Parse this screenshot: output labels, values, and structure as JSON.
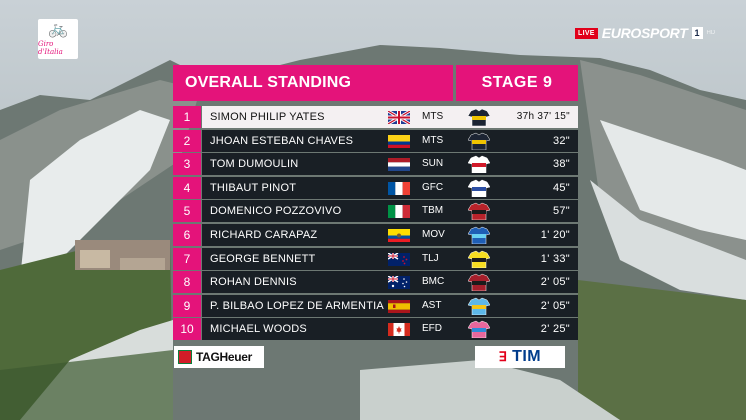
{
  "logo": {
    "text": "Giro d'Italia"
  },
  "broadcast": {
    "live": "LIVE",
    "channel_name": "EUROSPORT",
    "channel_number": "1",
    "hd": "HD"
  },
  "table": {
    "title": "OVERALL STANDING",
    "stage": "STAGE 9",
    "accent_color": "#e4137a",
    "rows": [
      {
        "pos": "1",
        "name": "SIMON PHILIP YATES",
        "flag": "gb-flag",
        "team": "MTS",
        "jersey": "leader-jersey-icon",
        "time": "37h 37' 15\""
      },
      {
        "pos": "2",
        "name": "JHOAN ESTEBAN CHAVES",
        "flag": "co-flag",
        "team": "MTS",
        "jersey": "mts-jersey-icon",
        "time": "32\""
      },
      {
        "pos": "3",
        "name": "TOM DUMOULIN",
        "flag": "nl-flag",
        "team": "SUN",
        "jersey": "sun-jersey-icon",
        "time": "38\""
      },
      {
        "pos": "4",
        "name": "THIBAUT PINOT",
        "flag": "fr-flag",
        "team": "GFC",
        "jersey": "gfc-jersey-icon",
        "time": "45\""
      },
      {
        "pos": "5",
        "name": "DOMENICO POZZOVIVO",
        "flag": "it-flag",
        "team": "TBM",
        "jersey": "tbm-jersey-icon",
        "time": "57\""
      },
      {
        "pos": "6",
        "name": "RICHARD CARAPAZ",
        "flag": "ec-flag",
        "team": "MOV",
        "jersey": "mov-jersey-icon",
        "time": "1' 20\""
      },
      {
        "pos": "7",
        "name": "GEORGE BENNETT",
        "flag": "nz-flag",
        "team": "TLJ",
        "jersey": "tlj-jersey-icon",
        "time": "1' 33\""
      },
      {
        "pos": "8",
        "name": "ROHAN DENNIS",
        "flag": "au-flag",
        "team": "BMC",
        "jersey": "bmc-jersey-icon",
        "time": "2' 05\""
      },
      {
        "pos": "9",
        "name": "P. BILBAO LOPEZ DE ARMENTIA",
        "flag": "es-flag",
        "team": "AST",
        "jersey": "ast-jersey-icon",
        "time": "2' 05\""
      },
      {
        "pos": "10",
        "name": "MICHAEL WOODS",
        "flag": "ca-flag",
        "team": "EFD",
        "jersey": "efd-jersey-icon",
        "time": "2' 25\""
      }
    ]
  },
  "sponsors": {
    "left": "TAGHeuer",
    "right_mark": "ꓱ",
    "right": "TIM"
  }
}
